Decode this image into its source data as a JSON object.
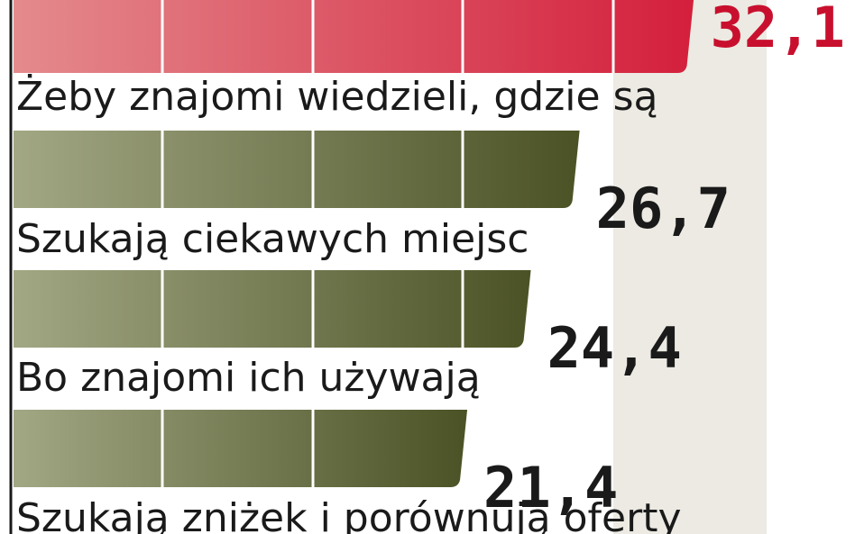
{
  "chart_data": {
    "type": "hbar",
    "categories": [
      null,
      "Żeby znajomi wiedzieli, gdzie są",
      "Szukają ciekawych miejsc",
      "Bo znajomi ich używają",
      "Szukają zniżek i porównują oferty"
    ],
    "values": [
      32.1,
      26.7,
      24.4,
      21.4,
      null
    ],
    "value_labels": [
      "32,1",
      "26,7",
      "24,4",
      "21,4",
      null
    ],
    "colors": [
      "#d41f3c",
      "#4b5225",
      "#4b5225",
      "#4b5225",
      "#4b5225"
    ],
    "label_colors": [
      "#c8102e",
      "#1a1a1a",
      "#1a1a1a",
      "#1a1a1a",
      "#1a1a1a"
    ],
    "xlim": [
      0,
      36.5
    ]
  }
}
